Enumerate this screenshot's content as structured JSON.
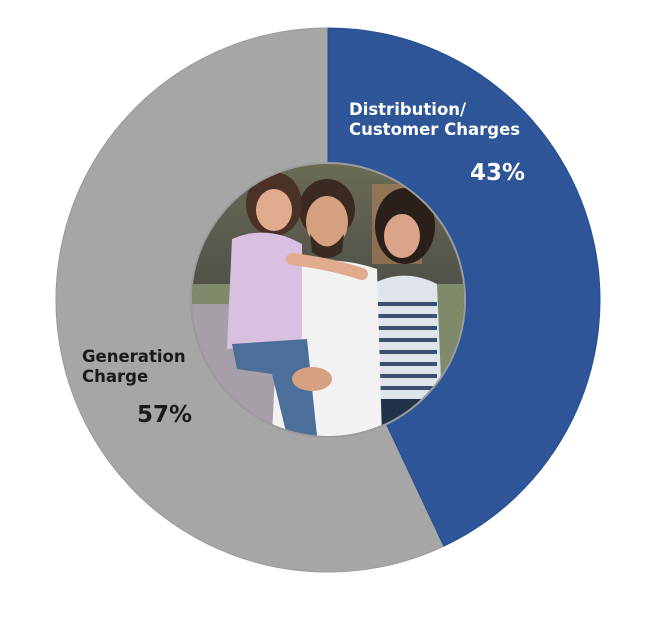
{
  "chart_data": {
    "type": "pie",
    "variant": "donut",
    "title": "",
    "categories": [
      "Distribution/ Customer Charges",
      "Generation Charge"
    ],
    "values": [
      43,
      57
    ],
    "unit": "%",
    "colors": [
      "#2d5597",
      "#a6a6a6"
    ],
    "labels": [
      {
        "line1": "Distribution/",
        "line2": "Customer Charges",
        "pct": "43%"
      },
      {
        "line1": "Generation",
        "line2": "Charge",
        "pct": "57%"
      }
    ],
    "center_image": "family-photo",
    "legend": "none",
    "start_angle_deg": 0,
    "direction": "clockwise"
  }
}
